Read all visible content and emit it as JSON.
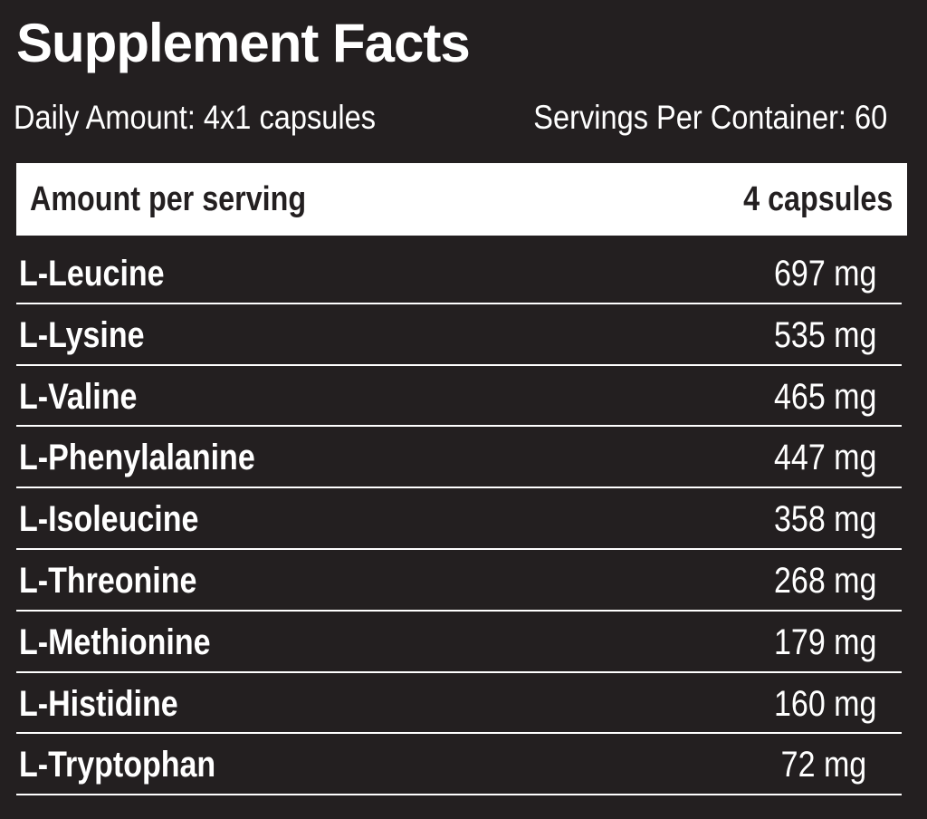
{
  "title": "Supplement Facts",
  "daily_amount": "Daily Amount: 4x1 capsules",
  "servings_per_container": "Servings Per Container: 60",
  "table_header": {
    "left": "Amount per serving",
    "right": "4 capsules"
  },
  "rows": [
    {
      "name": "L-Leucine",
      "amount": "697 mg"
    },
    {
      "name": "L-Lysine",
      "amount": "535 mg"
    },
    {
      "name": "L-Valine",
      "amount": "465 mg"
    },
    {
      "name": "L-Phenylalanine",
      "amount": "447 mg"
    },
    {
      "name": "L-Isoleucine",
      "amount": "358 mg"
    },
    {
      "name": "L-Threonine",
      "amount": "268 mg"
    },
    {
      "name": "L-Methionine",
      "amount": "179 mg"
    },
    {
      "name": "L-Histidine",
      "amount": "160 mg"
    },
    {
      "name": "L-Tryptophan",
      "amount": "72 mg"
    }
  ],
  "colors": {
    "background": "#231f20",
    "text": "#ffffff",
    "header_bar": "#ffffff",
    "header_text": "#231f20"
  }
}
